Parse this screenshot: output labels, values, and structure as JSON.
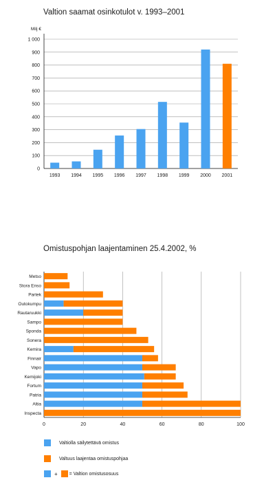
{
  "colors": {
    "blue": "#4aa3f0",
    "orange": "#ff7f00",
    "grid": "#9a9a9a",
    "axis": "#1a1a1a"
  },
  "chart_data": [
    {
      "type": "bar",
      "title": "Valtion saamat osinkotulot v. 1993–2001",
      "ylabel": "Milj €",
      "xlabel": "",
      "ylim": [
        0,
        1000
      ],
      "yticks": [
        0,
        100,
        200,
        300,
        400,
        500,
        600,
        700,
        800,
        900,
        1000
      ],
      "ytick_labels": [
        "0",
        "100",
        "200",
        "300",
        "400",
        "500",
        "600",
        "700",
        "800",
        "900",
        "1 000"
      ],
      "categories": [
        "1993",
        "1994",
        "1995",
        "1996",
        "1997",
        "1998",
        "1999",
        "2000",
        "2001"
      ],
      "values": [
        45,
        55,
        145,
        255,
        305,
        515,
        355,
        920,
        810
      ],
      "bar_colors": [
        "blue",
        "blue",
        "blue",
        "blue",
        "blue",
        "blue",
        "blue",
        "blue",
        "orange"
      ],
      "grid": true
    },
    {
      "type": "bar",
      "orientation": "horizontal",
      "stacked": true,
      "title": "Omistuspohjan laajentaminen 25.4.2002, %",
      "xlim": [
        0,
        100
      ],
      "xticks": [
        0,
        20,
        40,
        60,
        80,
        100
      ],
      "categories": [
        "Metso",
        "Stora Enso",
        "Partek",
        "Outokumpu",
        "Rautaruukki",
        "Sampo",
        "Sponda",
        "Sonera",
        "Kemira",
        "Finnair",
        "Vapo",
        "Kemijoki",
        "Fortum",
        "Patria",
        "Altia",
        "Inspecta"
      ],
      "series": [
        {
          "name": "Valtiolla säilytettävä omistus",
          "color": "blue",
          "values": [
            0,
            0,
            0,
            10,
            20,
            0,
            0,
            0,
            15,
            50,
            50,
            51,
            50,
            50,
            50,
            0
          ]
        },
        {
          "name": "Valtuus laajentaa omistuspohjaa",
          "color": "orange",
          "values": [
            12,
            13,
            30,
            30,
            20,
            40,
            47,
            53,
            41,
            8,
            17,
            16,
            21,
            23,
            50,
            100
          ]
        }
      ],
      "legend": {
        "placement": "bottom",
        "sum_label": "= Valtion omistusosuus",
        "plus": "+"
      },
      "grid": true
    }
  ]
}
